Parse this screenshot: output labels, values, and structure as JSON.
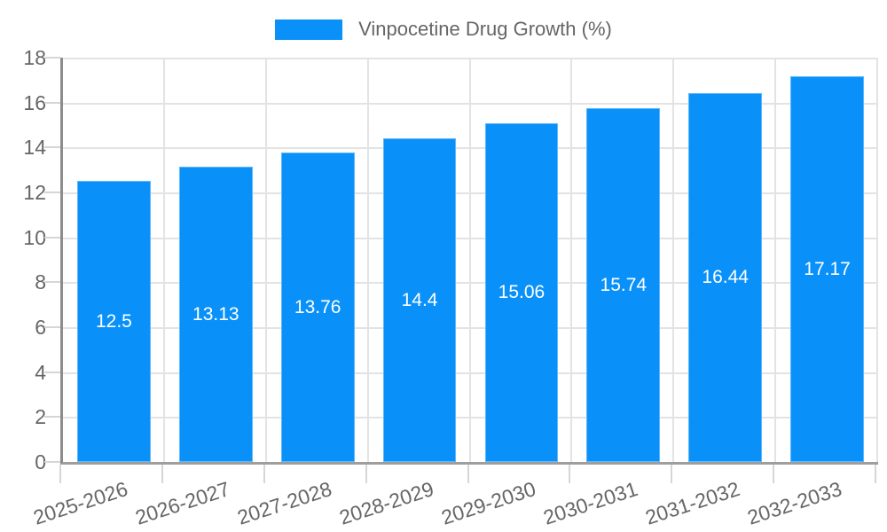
{
  "legend": {
    "label": "Vinpocetine Drug Growth (%)"
  },
  "chart_data": {
    "type": "bar",
    "title": "",
    "legend_entries": [
      "Vinpocetine Drug Growth (%)"
    ],
    "legend_position": "top-center",
    "categories": [
      "2025-2026",
      "2026-2027",
      "2027-2028",
      "2028-2029",
      "2029-2030",
      "2030-2031",
      "2031-2032",
      "2032-2033"
    ],
    "values": [
      12.5,
      13.13,
      13.76,
      14.4,
      15.06,
      15.74,
      16.44,
      17.17
    ],
    "value_labels": [
      "12.5",
      "13.13",
      "13.76",
      "14.4",
      "15.06",
      "15.74",
      "16.44",
      "17.17"
    ],
    "xlabel": "",
    "ylabel": "",
    "ylim": [
      0,
      18
    ],
    "yticks": [
      0,
      2,
      4,
      6,
      8,
      10,
      12,
      14,
      16,
      18
    ],
    "grid": true,
    "colors": {
      "bar": "#0991f9",
      "bar_label_text": "#ffffff",
      "axis_text": "#666666",
      "legend_text": "#666666",
      "grid_line": "#e3e3e3",
      "tick_line": "#d6d6d6",
      "x_axis_line": "#9e9e9e",
      "y_axis_line": "#8c8c8c"
    }
  }
}
